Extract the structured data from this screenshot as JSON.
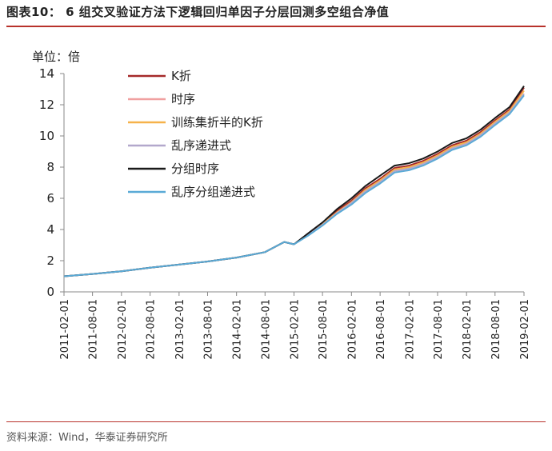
{
  "header": {
    "title": "图表10：  6 组交叉验证方法下逻辑回归单因子分层回测多空组合净值"
  },
  "footer": {
    "source": "资料来源：Wind，华泰证券研究所"
  },
  "chart_data": {
    "type": "line",
    "unit_label": "单位：倍",
    "ylim": [
      0,
      14
    ],
    "yticks": [
      0,
      2,
      4,
      6,
      8,
      10,
      12,
      14
    ],
    "xticks": [
      "2011-02-01",
      "2011-08-01",
      "2012-02-01",
      "2012-08-01",
      "2013-02-01",
      "2013-08-01",
      "2014-02-01",
      "2014-08-01",
      "2015-02-01",
      "2015-08-01",
      "2016-02-01",
      "2016-08-01",
      "2017-02-01",
      "2017-08-01",
      "2018-02-01",
      "2018-08-01",
      "2019-02-01"
    ],
    "x": [
      "2011-02-01",
      "2011-08-01",
      "2012-02-01",
      "2012-08-01",
      "2013-02-01",
      "2013-08-01",
      "2014-02-01",
      "2014-08-01",
      "2014-12-01",
      "2015-02-01",
      "2015-05-01",
      "2015-08-01",
      "2015-11-01",
      "2016-02-01",
      "2016-05-01",
      "2016-08-01",
      "2016-11-01",
      "2017-02-01",
      "2017-05-01",
      "2017-08-01",
      "2017-11-01",
      "2018-02-01",
      "2018-05-01",
      "2018-08-01",
      "2018-11-01",
      "2019-02-01"
    ],
    "grid": false,
    "legend_position": "top-left",
    "series": [
      {
        "name": "K折",
        "color": "#a52a2a",
        "values": [
          1.0,
          1.15,
          1.32,
          1.55,
          1.75,
          1.95,
          2.2,
          2.55,
          3.2,
          3.05,
          3.7,
          4.4,
          5.2,
          5.85,
          6.65,
          7.25,
          7.95,
          8.1,
          8.4,
          8.85,
          9.4,
          9.7,
          10.25,
          11.0,
          11.7,
          13.1
        ]
      },
      {
        "name": "时序",
        "color": "#f0a0a0",
        "values": [
          1.0,
          1.15,
          1.32,
          1.55,
          1.75,
          1.95,
          2.2,
          2.55,
          3.2,
          3.05,
          3.65,
          4.3,
          5.05,
          5.7,
          6.45,
          7.05,
          7.75,
          7.9,
          8.2,
          8.65,
          9.2,
          9.5,
          10.05,
          10.8,
          11.5,
          12.7
        ]
      },
      {
        "name": "训练集折半的K折",
        "color": "#f6b24a",
        "values": [
          1.0,
          1.15,
          1.32,
          1.55,
          1.75,
          1.95,
          2.2,
          2.55,
          3.2,
          3.05,
          3.7,
          4.35,
          5.1,
          5.75,
          6.55,
          7.15,
          7.85,
          8.0,
          8.3,
          8.75,
          9.3,
          9.6,
          10.15,
          10.9,
          11.6,
          12.9
        ]
      },
      {
        "name": "乱序递进式",
        "color": "#b3a8cc",
        "values": [
          1.0,
          1.15,
          1.32,
          1.55,
          1.75,
          1.95,
          2.2,
          2.55,
          3.2,
          3.05,
          3.65,
          4.3,
          5.05,
          5.7,
          6.45,
          7.05,
          7.75,
          7.9,
          8.2,
          8.65,
          9.2,
          9.5,
          10.05,
          10.8,
          11.5,
          12.7
        ]
      },
      {
        "name": "分组时序",
        "color": "#1a1a1a",
        "values": [
          1.0,
          1.15,
          1.32,
          1.55,
          1.75,
          1.95,
          2.2,
          2.55,
          3.2,
          3.05,
          3.75,
          4.45,
          5.3,
          6.0,
          6.8,
          7.45,
          8.1,
          8.25,
          8.55,
          9.0,
          9.55,
          9.85,
          10.4,
          11.15,
          11.85,
          13.2
        ]
      },
      {
        "name": "乱序分组递进式",
        "color": "#5aaad6",
        "values": [
          1.0,
          1.15,
          1.32,
          1.55,
          1.75,
          1.95,
          2.2,
          2.55,
          3.2,
          3.05,
          3.6,
          4.25,
          5.0,
          5.6,
          6.35,
          6.95,
          7.65,
          7.8,
          8.1,
          8.55,
          9.1,
          9.4,
          9.95,
          10.7,
          11.4,
          12.6
        ]
      }
    ]
  }
}
